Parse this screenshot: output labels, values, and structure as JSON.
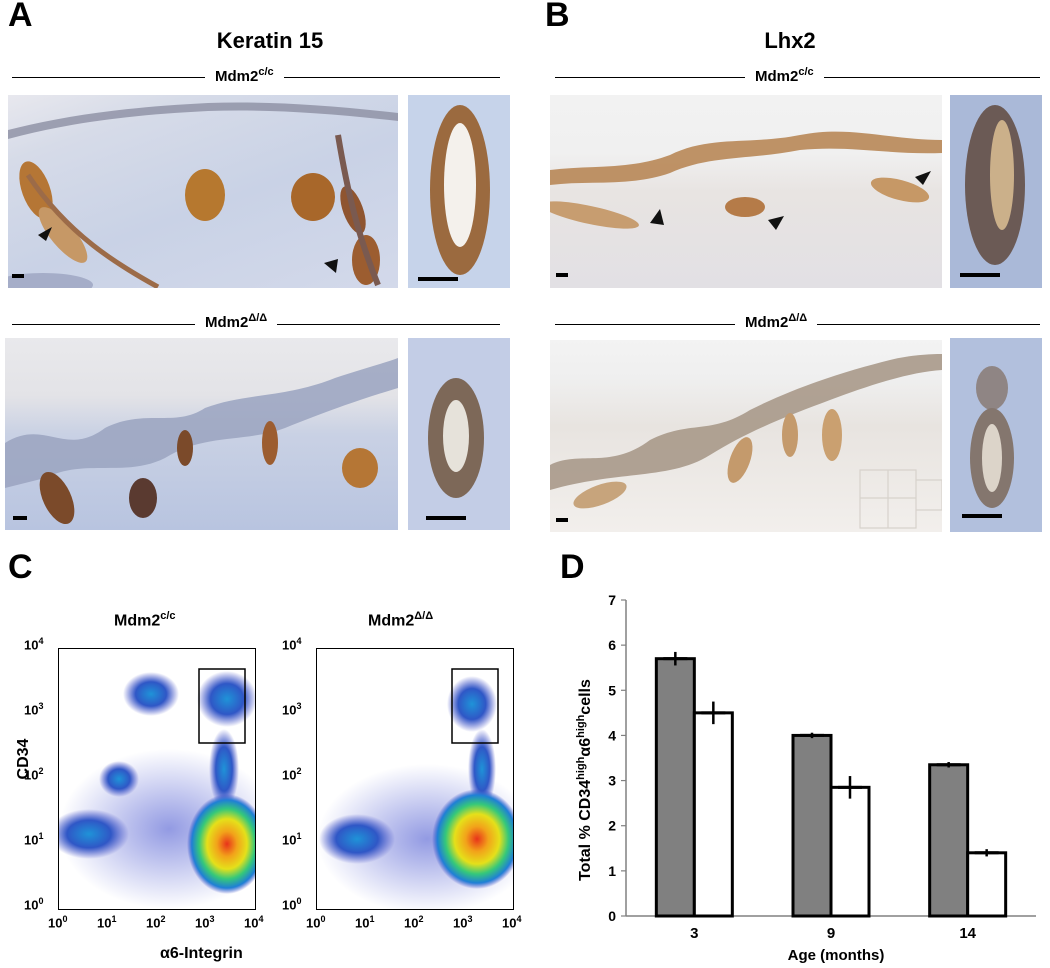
{
  "panel_a": {
    "label": "A",
    "title": "Keratin 15",
    "geno_top": "Mdm2",
    "geno_top_sup": "c/c",
    "geno_bottom": "Mdm2",
    "geno_bottom_sup": "Δ/Δ"
  },
  "panel_b": {
    "label": "B",
    "title": "Lhx2",
    "geno_top": "Mdm2",
    "geno_top_sup": "c/c",
    "geno_bottom": "Mdm2",
    "geno_bottom_sup": "Δ/Δ"
  },
  "panel_c": {
    "label": "C",
    "plot_left_title": "Mdm2",
    "plot_left_sup": "c/c",
    "plot_right_title": "Mdm2",
    "plot_right_sup": "Δ/Δ",
    "ylabel": "CD34",
    "xlabel": "α6-Integrin",
    "tick_base": "10",
    "tick_exps": [
      "0",
      "1",
      "2",
      "3",
      "4"
    ]
  },
  "panel_d": {
    "label": "D"
  },
  "chart_data": {
    "type": "bar",
    "categories": [
      "3",
      "9",
      "14"
    ],
    "series": [
      {
        "values": [
          5.7,
          4.0,
          3.35
        ],
        "errors": [
          0.15,
          0.06,
          0.06
        ],
        "color": "#808080"
      },
      {
        "values": [
          4.5,
          2.85,
          1.4
        ],
        "errors": [
          0.25,
          0.25,
          0.08
        ],
        "color": "#ffffff"
      }
    ],
    "ylabel_main": "Total % CD34",
    "ylabel_sup1": "high",
    "ylabel_mid": "α6",
    "ylabel_sup2": "high",
    "ylabel_end": "cells",
    "xlabel": "Age (months)",
    "ylim": [
      0,
      7
    ],
    "yticks": [
      "0",
      "1",
      "2",
      "3",
      "4",
      "5",
      "6",
      "7"
    ],
    "grid": false
  }
}
